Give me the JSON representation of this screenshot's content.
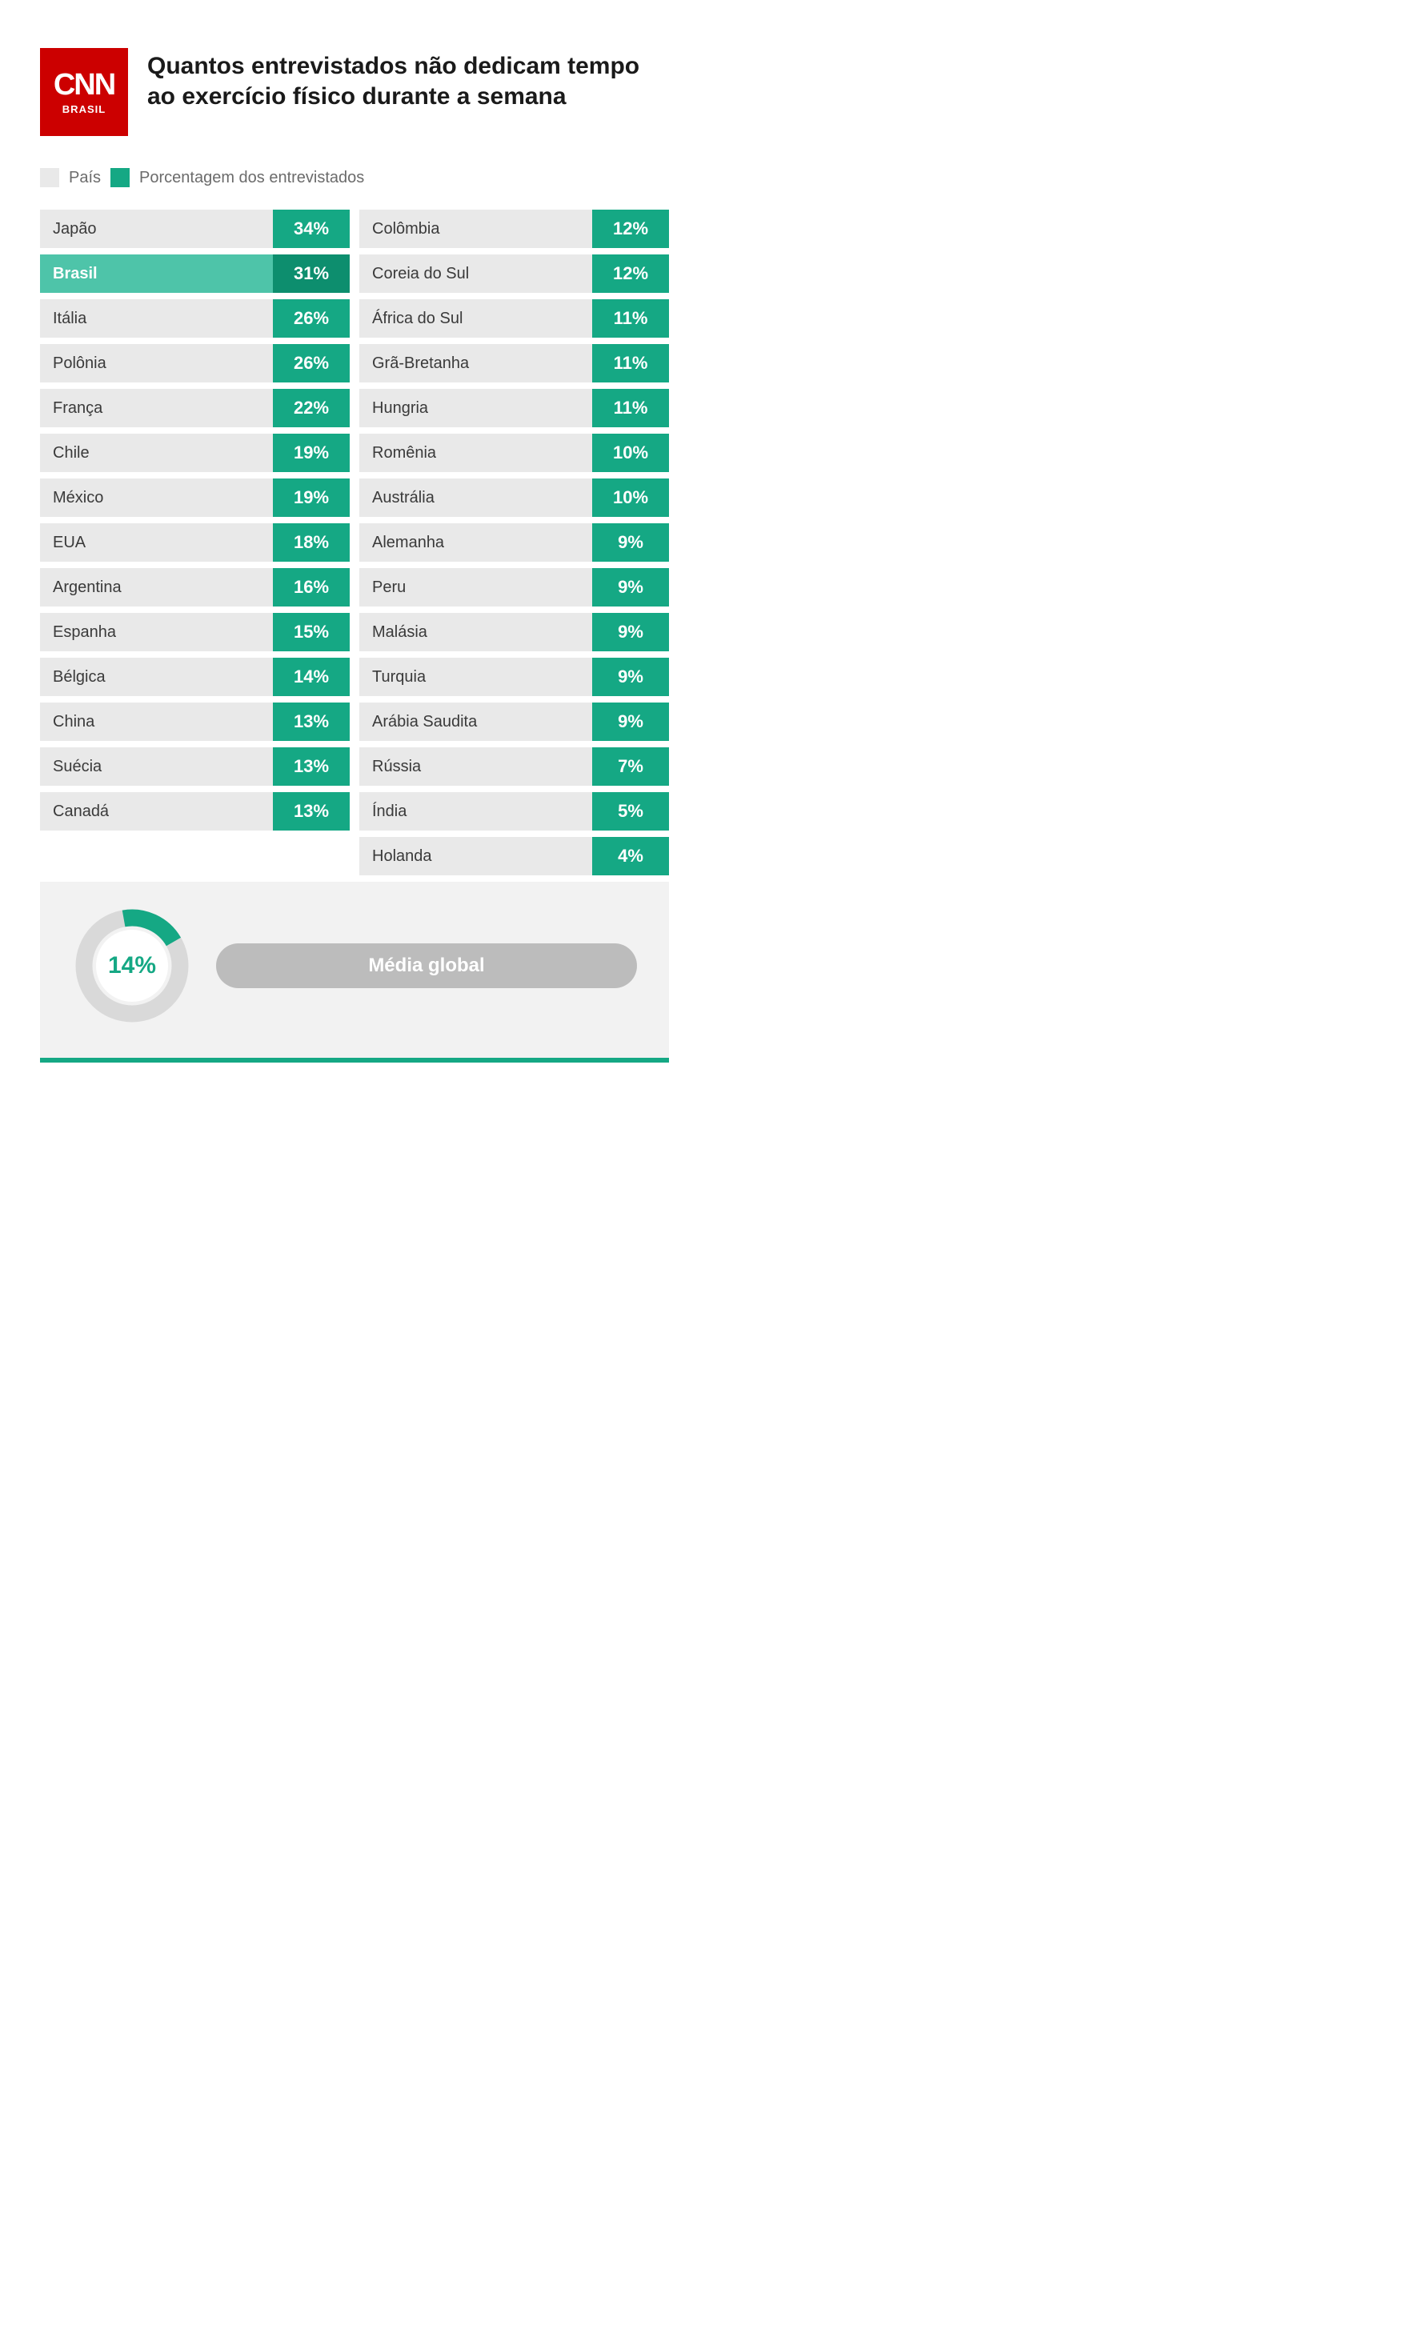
{
  "logo": {
    "main": "CNN",
    "sub": "BRASIL",
    "bg": "#cc0000",
    "fg": "#ffffff"
  },
  "title": "Quantos entrevistados não dedicam tempo ao exercício físico durante a semana",
  "legend": {
    "country_label": "País",
    "pct_label": "Porcentagem dos entrevistados",
    "country_swatch": "#e9e9e9",
    "pct_swatch": "#15a884"
  },
  "colors": {
    "row_bg": "#e9e9e9",
    "row_text": "#3a3a3a",
    "pct_bg": "#15a884",
    "pct_text": "#ffffff",
    "highlight_country_bg": "#4ec4a9",
    "highlight_pct_bg": "#0d8e6e",
    "footer_bg": "#f2f2f2",
    "pill_bg": "#bcbcbc",
    "donut_track": "#d9d9d9",
    "donut_fill": "#15a884",
    "accent_line": "#15a884"
  },
  "left": [
    {
      "country": "Japão",
      "pct": "34%",
      "highlight": false
    },
    {
      "country": "Brasil",
      "pct": "31%",
      "highlight": true
    },
    {
      "country": "Itália",
      "pct": "26%",
      "highlight": false
    },
    {
      "country": "Polônia",
      "pct": "26%",
      "highlight": false
    },
    {
      "country": "França",
      "pct": "22%",
      "highlight": false
    },
    {
      "country": "Chile",
      "pct": "19%",
      "highlight": false
    },
    {
      "country": "México",
      "pct": "19%",
      "highlight": false
    },
    {
      "country": "EUA",
      "pct": "18%",
      "highlight": false
    },
    {
      "country": "Argentina",
      "pct": "16%",
      "highlight": false
    },
    {
      "country": "Espanha",
      "pct": "15%",
      "highlight": false
    },
    {
      "country": "Bélgica",
      "pct": "14%",
      "highlight": false
    },
    {
      "country": "China",
      "pct": "13%",
      "highlight": false
    },
    {
      "country": "Suécia",
      "pct": "13%",
      "highlight": false
    },
    {
      "country": "Canadá",
      "pct": "13%",
      "highlight": false
    }
  ],
  "right": [
    {
      "country": "Colômbia",
      "pct": "12%",
      "highlight": false
    },
    {
      "country": "Coreia do Sul",
      "pct": "12%",
      "highlight": false
    },
    {
      "country": "África do Sul",
      "pct": "11%",
      "highlight": false
    },
    {
      "country": "Grã-Bretanha",
      "pct": "11%",
      "highlight": false
    },
    {
      "country": "Hungria",
      "pct": "11%",
      "highlight": false
    },
    {
      "country": "Romênia",
      "pct": "10%",
      "highlight": false
    },
    {
      "country": "Austrália",
      "pct": "10%",
      "highlight": false
    },
    {
      "country": "Alemanha",
      "pct": "9%",
      "highlight": false
    },
    {
      "country": "Peru",
      "pct": "9%",
      "highlight": false
    },
    {
      "country": "Malásia",
      "pct": "9%",
      "highlight": false
    },
    {
      "country": "Turquia",
      "pct": "9%",
      "highlight": false
    },
    {
      "country": "Arábia Saudita",
      "pct": "9%",
      "highlight": false
    },
    {
      "country": "Rússia",
      "pct": "7%",
      "highlight": false
    },
    {
      "country": "Índia",
      "pct": "5%",
      "highlight": false
    },
    {
      "country": "Holanda",
      "pct": "4%",
      "highlight": false
    }
  ],
  "global": {
    "value": 14,
    "label": "14%",
    "pill_label": "Média global",
    "arc_start_deg": -10,
    "arc_end_deg": 60
  }
}
